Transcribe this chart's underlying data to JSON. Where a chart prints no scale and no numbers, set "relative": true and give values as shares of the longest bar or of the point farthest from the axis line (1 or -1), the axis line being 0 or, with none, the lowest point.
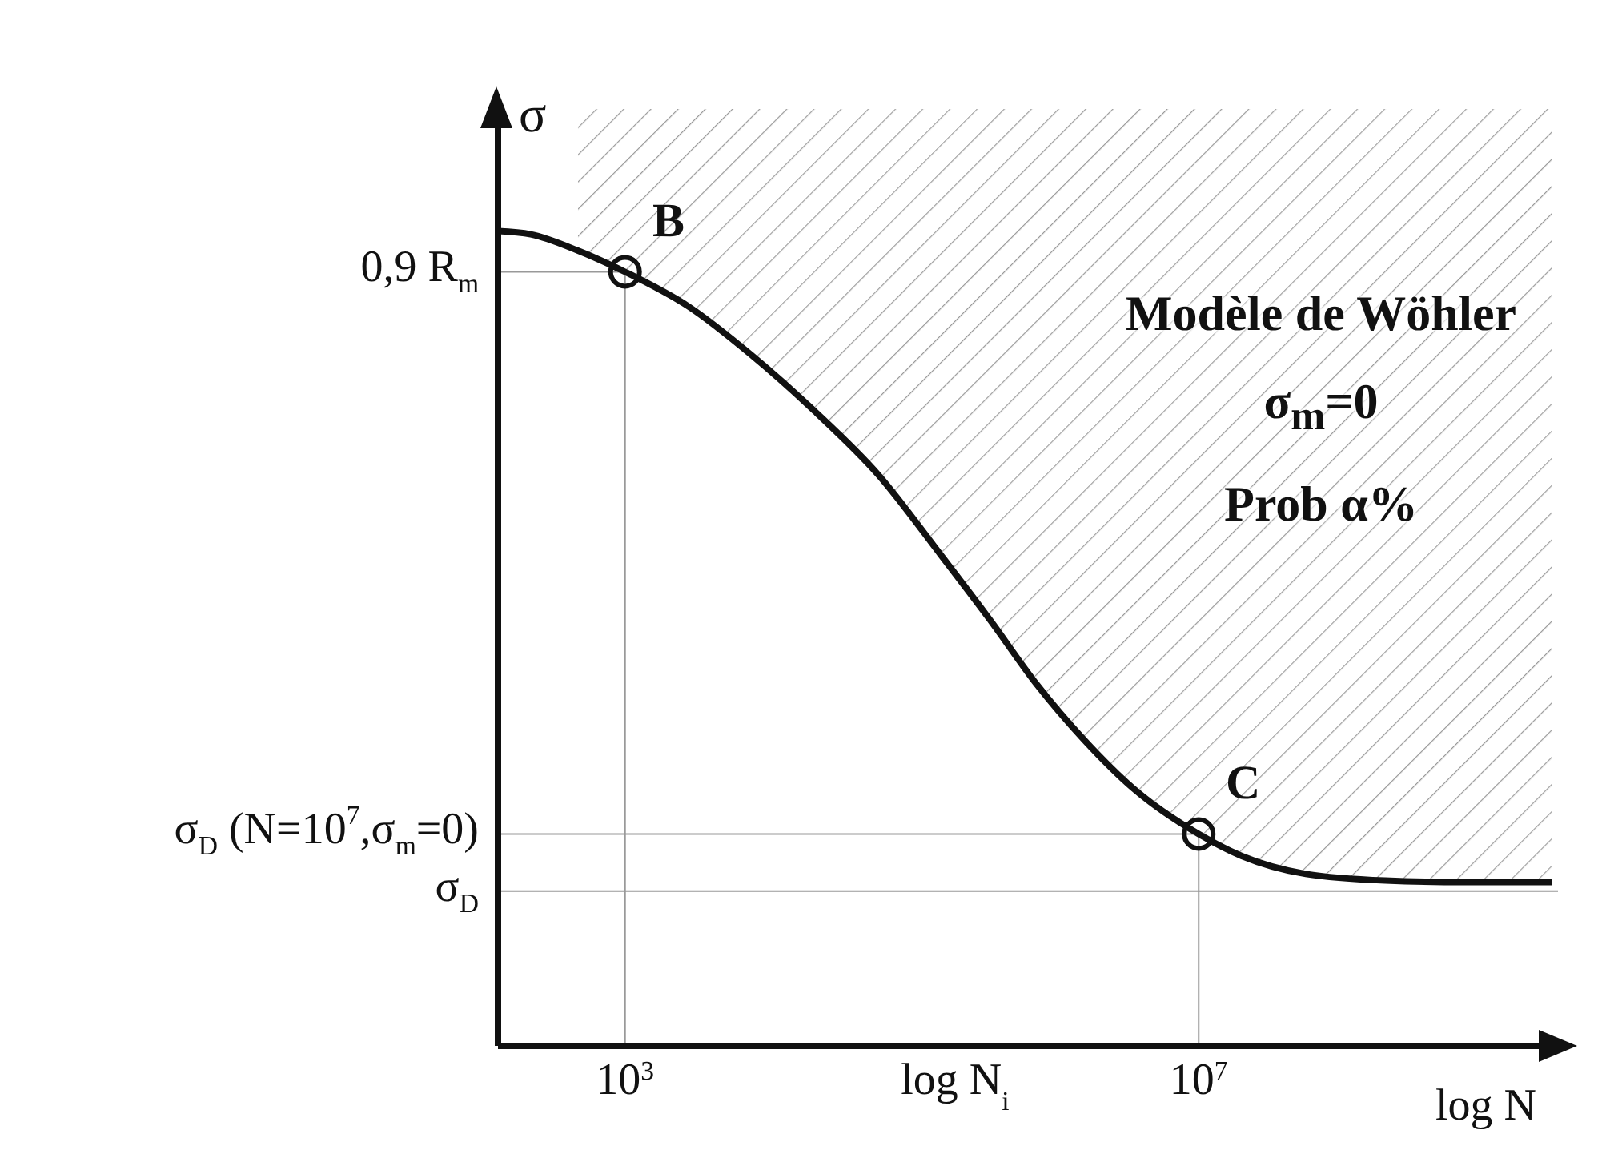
{
  "chart_data": {
    "type": "line",
    "relative": true,
    "xlabel": "log N",
    "ylabel": "σ",
    "log": "x",
    "xlim": [
      130,
      3200000000
    ],
    "xticks": [
      {
        "value": 1000,
        "label": "10$^{3}$"
      },
      {
        "value": 200000,
        "label": "log N$_{i}$"
      },
      {
        "value": 10000000,
        "label": "10$^{7}$"
      }
    ],
    "series": [
      {
        "color": "#111111",
        "x": [
          130,
          220,
          470,
          1000,
          2800,
          7600,
          21000,
          59000,
          160000,
          350000,
          740000,
          1600000,
          3500000,
          10000000,
          20000000,
          56000000,
          200000000,
          720000000,
          2900000000
        ],
        "values": [
          1,
          0.996,
          0.976,
          0.95,
          0.907,
          0.848,
          0.779,
          0.7,
          0.602,
          0.523,
          0.444,
          0.375,
          0.316,
          0.26,
          0.233,
          0.211,
          0.203,
          0.201,
          0.201
        ],
        "lower": [
          null,
          null,
          0.976,
          0.95,
          0.907,
          0.848,
          0.779,
          0.7,
          0.602,
          0.523,
          0.444,
          0.375,
          0.316,
          0.26,
          0.233,
          0.211,
          0.203,
          0.201,
          0.201
        ],
        "upper": [
          null,
          null,
          1.15,
          1.15,
          1.15,
          1.15,
          1.15,
          1.15,
          1.15,
          1.15,
          1.15,
          1.15,
          1.15,
          1.15,
          1.15,
          1.15,
          1.15,
          1.15,
          1.15
        ]
      },
      {
        "type": "scatter",
        "color": "#111111",
        "marker": "circle",
        "x": [
          1000,
          10000000
        ],
        "values": [
          0.95,
          0.26
        ]
      }
    ],
    "ref_lines": [
      {
        "axis": "y",
        "value": 0.95,
        "label": "0,9 R$_{m}$",
        "color": "#999999"
      },
      {
        "axis": "y",
        "value": 0.26,
        "label": "σ$_{D}$ (N=10$^{7}$,σ$_{m}$=0)",
        "color": "#999999"
      },
      {
        "axis": "y",
        "value": 0.19,
        "label": "σ$_{D}$",
        "color": "#999999"
      },
      {
        "axis": "x",
        "value": 1000,
        "color": "#999999"
      },
      {
        "axis": "x",
        "value": 10000000,
        "color": "#999999"
      }
    ],
    "annotations": [
      {
        "text": "B",
        "x": 1000,
        "y": 0.95
      },
      {
        "text": "C",
        "x": 10000000,
        "y": 0.26
      },
      "Modèle de Wöhler",
      "σ$_{m}$=0",
      "Prob α%"
    ]
  }
}
